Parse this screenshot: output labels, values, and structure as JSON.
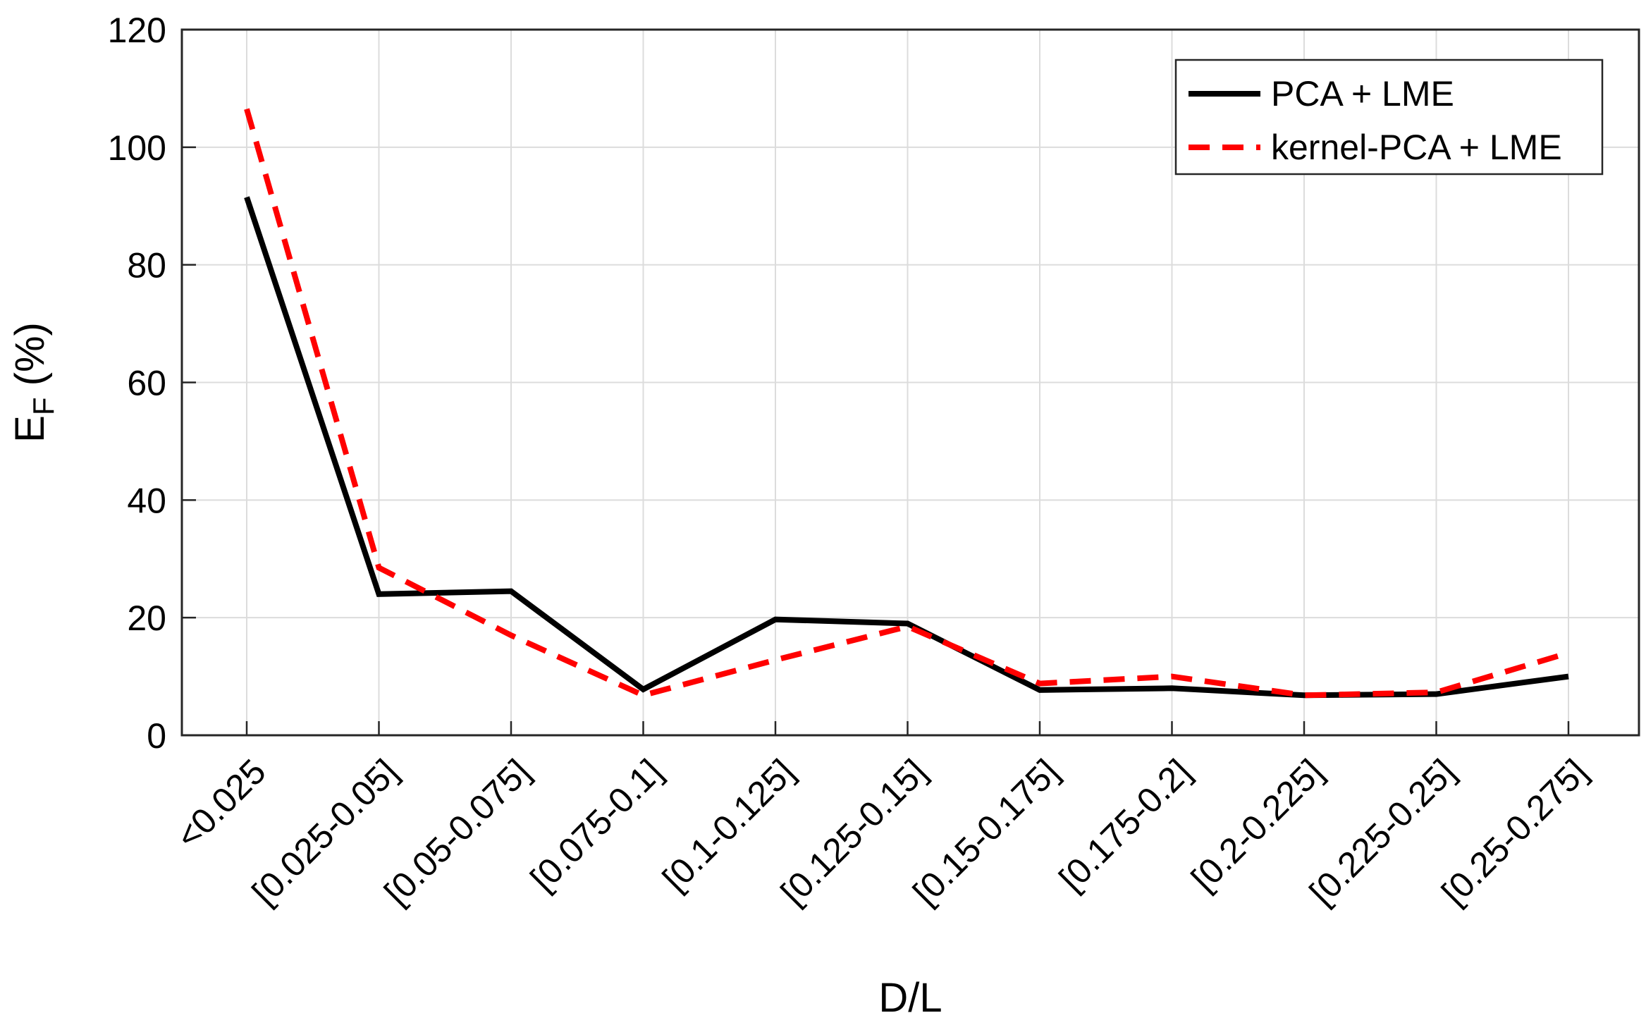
{
  "chart_data": {
    "type": "line",
    "xlabel": "D/L",
    "ylabel_main": "E",
    "ylabel_sub": "F",
    "ylabel_suffix": " (%)",
    "categories": [
      "<0.025",
      "[0.025-0.05]",
      "[0.05-0.075]",
      "[0.075-0.1]",
      "[0.1-0.125]",
      "[0.125-0.15]",
      "[0.15-0.175]",
      "[0.175-0.2]",
      "[0.2-0.225]",
      "[0.225-0.25]",
      "[0.25-0.275]"
    ],
    "ylim": [
      0,
      120
    ],
    "yticks": [
      0,
      20,
      40,
      60,
      80,
      100,
      120
    ],
    "grid": true,
    "legend_position": "top-right",
    "series": [
      {
        "name": "PCA + LME",
        "color": "#000000",
        "style": "solid",
        "values": [
          91.5,
          24.0,
          24.5,
          7.8,
          19.7,
          19.0,
          7.7,
          8.0,
          6.8,
          7.0,
          10.0
        ]
      },
      {
        "name": "kernel-PCA + LME",
        "color": "#ff0000",
        "style": "dashed",
        "values": [
          106.5,
          28.5,
          17.0,
          6.8,
          12.8,
          18.5,
          8.8,
          10.0,
          6.8,
          7.3,
          14.0
        ]
      }
    ]
  }
}
